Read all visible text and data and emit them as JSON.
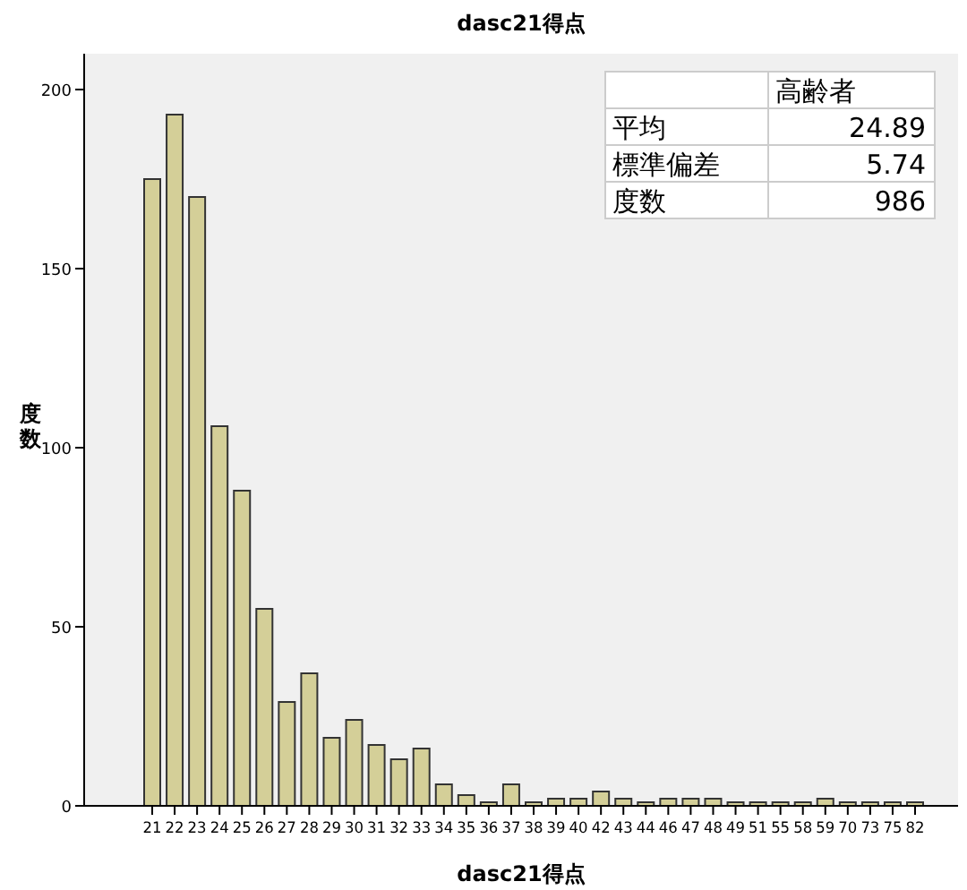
{
  "chart_data": {
    "type": "bar",
    "title": "dasc21得点",
    "xlabel": "dasc21得点",
    "ylabel": "度数",
    "categories": [
      "21",
      "22",
      "23",
      "24",
      "25",
      "26",
      "27",
      "28",
      "29",
      "30",
      "31",
      "32",
      "33",
      "34",
      "35",
      "36",
      "37",
      "38",
      "39",
      "40",
      "42",
      "43",
      "44",
      "46",
      "47",
      "48",
      "49",
      "51",
      "55",
      "58",
      "59",
      "70",
      "73",
      "75",
      "82"
    ],
    "values": [
      175,
      193,
      170,
      106,
      88,
      55,
      29,
      37,
      19,
      24,
      17,
      13,
      16,
      6,
      3,
      1,
      6,
      1,
      2,
      2,
      4,
      2,
      1,
      2,
      2,
      2,
      1,
      1,
      1,
      1,
      2,
      1,
      1,
      1,
      1
    ],
    "color": "#d4cf98",
    "ylim": [
      0,
      210
    ],
    "yticks": [
      0,
      50,
      100,
      150,
      200
    ],
    "annotations": [
      "高齢者",
      "平均",
      "24.89",
      "標準偏差",
      "5.74",
      "度数",
      "986"
    ]
  }
}
